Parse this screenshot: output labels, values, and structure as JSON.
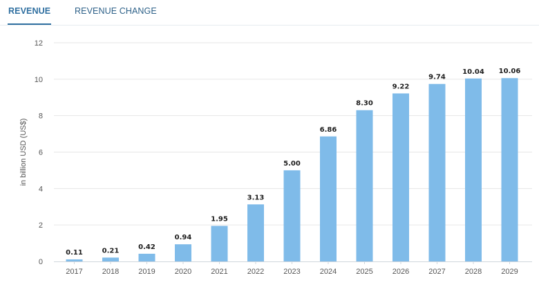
{
  "tabs": [
    {
      "label": "REVENUE",
      "active": true
    },
    {
      "label": "REVENUE CHANGE",
      "active": false
    }
  ],
  "colors": {
    "bar": "#7fbbe9",
    "grid": "#e6e6e6",
    "axis": "#cfd6dc",
    "tab_active": "#2f6fa0",
    "tab_inactive": "#2b5f87"
  },
  "chart_data": {
    "type": "bar",
    "title": "",
    "xlabel": "",
    "ylabel": "in billion USD (US$)",
    "ylim": [
      0,
      12
    ],
    "yticks": [
      0,
      2,
      4,
      6,
      8,
      10,
      12
    ],
    "categories": [
      "2017",
      "2018",
      "2019",
      "2020",
      "2021",
      "2022",
      "2023",
      "2024",
      "2025",
      "2026",
      "2027",
      "2028",
      "2029"
    ],
    "values": [
      0.11,
      0.21,
      0.42,
      0.94,
      1.95,
      3.13,
      5.0,
      6.86,
      8.3,
      9.22,
      9.74,
      10.04,
      10.06
    ],
    "data_labels": [
      "0.11",
      "0.21",
      "0.42",
      "0.94",
      "1.95",
      "3.13",
      "5.00",
      "6.86",
      "8.30",
      "9.22",
      "9.74",
      "10.04",
      "10.06"
    ],
    "grid": true
  }
}
